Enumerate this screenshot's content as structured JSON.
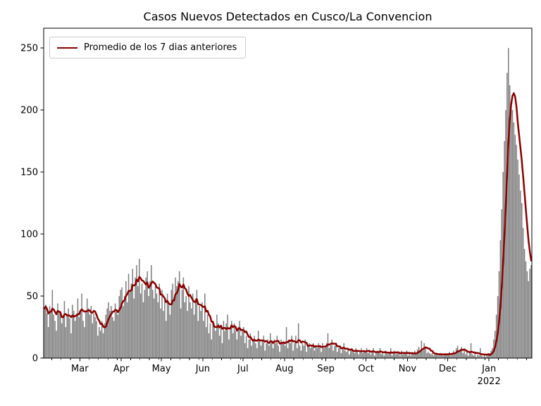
{
  "colors": {
    "bar": "#7f7f7f",
    "line": "#8b0000",
    "axis": "#000000",
    "legend_border": "#cccccc",
    "background": "#ffffff"
  },
  "chart_data": {
    "type": "bar",
    "title": "Casos Nuevos Detectados en Cusco/La Convencion",
    "legend_label": "Promedio de los 7 dias anteriores",
    "legend_position": "upper left",
    "grid": false,
    "ylim": [
      0,
      266
    ],
    "y_ticks": [
      0,
      50,
      100,
      150,
      200,
      250
    ],
    "x_axis": {
      "ticks": [
        {
          "label": "Mar",
          "day": 27
        },
        {
          "label": "Apr",
          "day": 58
        },
        {
          "label": "May",
          "day": 88
        },
        {
          "label": "Jun",
          "day": 119
        },
        {
          "label": "Jul",
          "day": 149
        },
        {
          "label": "Aug",
          "day": 180
        },
        {
          "label": "Sep",
          "day": 211
        },
        {
          "label": "Oct",
          "day": 241
        },
        {
          "label": "Nov",
          "day": 272
        },
        {
          "label": "Dec",
          "day": 302
        },
        {
          "label": "Jan",
          "day": 333
        }
      ],
      "year_label": "2022",
      "year_tick_day": 333,
      "pre_minor_days": [
        6,
        13,
        20
      ]
    },
    "line": {
      "method": "trailing_mean",
      "window": 7
    },
    "bars": [
      40,
      43,
      36,
      25,
      42,
      38,
      55,
      35,
      30,
      22,
      44,
      38,
      35,
      28,
      33,
      46,
      25,
      35,
      40,
      32,
      20,
      43,
      38,
      30,
      36,
      48,
      33,
      38,
      52,
      30,
      25,
      38,
      48,
      40,
      35,
      42,
      28,
      36,
      33,
      30,
      18,
      25,
      22,
      30,
      20,
      28,
      35,
      40,
      45,
      38,
      42,
      33,
      30,
      44,
      38,
      35,
      50,
      55,
      57,
      42,
      50,
      62,
      45,
      68,
      55,
      60,
      72,
      48,
      65,
      75,
      58,
      80,
      52,
      60,
      45,
      55,
      65,
      70,
      50,
      62,
      75,
      55,
      48,
      58,
      52,
      45,
      60,
      40,
      55,
      38,
      48,
      30,
      52,
      45,
      35,
      55,
      60,
      48,
      65,
      58,
      62,
      70,
      40,
      55,
      65,
      45,
      50,
      38,
      58,
      45,
      40,
      52,
      35,
      48,
      55,
      30,
      42,
      38,
      45,
      30,
      52,
      25,
      35,
      20,
      28,
      15,
      30,
      25,
      22,
      35,
      28,
      18,
      25,
      12,
      30,
      22,
      28,
      35,
      15,
      25,
      30,
      20,
      28,
      22,
      15,
      25,
      30,
      18,
      22,
      25,
      12,
      18,
      8,
      15,
      20,
      10,
      15,
      18,
      12,
      8,
      22,
      15,
      10,
      14,
      18,
      6,
      12,
      15,
      10,
      20,
      14,
      8,
      15,
      12,
      18,
      10,
      5,
      15,
      12,
      14,
      10,
      25,
      8,
      15,
      12,
      18,
      6,
      12,
      18,
      8,
      28,
      10,
      6,
      12,
      10,
      15,
      5,
      10,
      12,
      8,
      10,
      12,
      6,
      10,
      8,
      12,
      10,
      5,
      12,
      8,
      10,
      12,
      20,
      8,
      10,
      15,
      6,
      10,
      12,
      5,
      8,
      10,
      4,
      8,
      12,
      6,
      5,
      8,
      3,
      6,
      8,
      5,
      4,
      8,
      6,
      3,
      5,
      8,
      4,
      6,
      5,
      8,
      4,
      6,
      3,
      5,
      8,
      2,
      5,
      6,
      4,
      8,
      3,
      5,
      2,
      6,
      4,
      3,
      5,
      8,
      2,
      4,
      6,
      3,
      5,
      4,
      2,
      6,
      3,
      5,
      4,
      6,
      2,
      4,
      2,
      5,
      3,
      6,
      3,
      7,
      9,
      5,
      14,
      6,
      12,
      8,
      4,
      5,
      4,
      3,
      4,
      2,
      3,
      4,
      3,
      2,
      4,
      3,
      2,
      3,
      4,
      3,
      3,
      5,
      2,
      4,
      6,
      3,
      8,
      10,
      5,
      7,
      9,
      4,
      6,
      3,
      5,
      2,
      4,
      12,
      3,
      2,
      4,
      1,
      3,
      2,
      8,
      2,
      1,
      3,
      1,
      2,
      4,
      4,
      6,
      8,
      15,
      22,
      35,
      50,
      70,
      95,
      120,
      150,
      175,
      200,
      230,
      250,
      220,
      205,
      200,
      190,
      180,
      172,
      160,
      148,
      135,
      125,
      105,
      88,
      78,
      70,
      62,
      72,
      75
    ]
  }
}
